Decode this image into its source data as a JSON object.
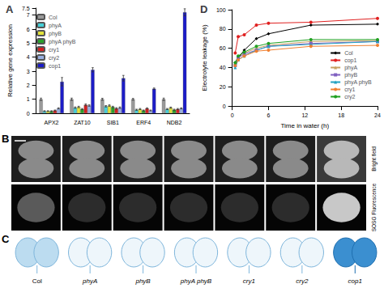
{
  "chart_data": [
    {
      "type": "bar",
      "title": "A",
      "ylabel": "Relative gene expression",
      "categories": [
        "APX2",
        "ZAT10",
        "SIB1",
        "ERF4",
        "NDB2"
      ],
      "series": [
        {
          "name": "Col",
          "color": "#9a9a9a",
          "values": [
            1.0,
            1.0,
            1.0,
            1.0,
            1.0
          ],
          "errors": [
            0.08,
            0.08,
            0.07,
            0.06,
            0.08
          ]
        },
        {
          "name": "phyA",
          "color": "#45d0d8",
          "values": [
            0.15,
            0.4,
            0.5,
            0.25,
            0.3
          ],
          "errors": [
            0.03,
            0.05,
            0.05,
            0.04,
            0.04
          ]
        },
        {
          "name": "phyB",
          "color": "#e2e23a",
          "values": [
            0.15,
            0.45,
            0.55,
            0.3,
            0.4
          ],
          "errors": [
            0.03,
            0.05,
            0.05,
            0.04,
            0.04
          ]
        },
        {
          "name": "phyA phyB",
          "color": "#2aa02a",
          "values": [
            0.15,
            0.3,
            0.45,
            0.2,
            0.25
          ],
          "errors": [
            0.03,
            0.04,
            0.05,
            0.03,
            0.04
          ]
        },
        {
          "name": "cry1",
          "color": "#d42020",
          "values": [
            0.2,
            0.6,
            0.35,
            0.35,
            0.3
          ],
          "errors": [
            0.03,
            0.06,
            0.05,
            0.04,
            0.04
          ]
        },
        {
          "name": "cry2",
          "color": "#9ab0e0",
          "values": [
            0.35,
            0.55,
            0.4,
            0.2,
            0.35
          ],
          "errors": [
            0.04,
            0.05,
            0.05,
            0.03,
            0.04
          ]
        },
        {
          "name": "cop1",
          "color": "#1c1cc8",
          "values": [
            2.25,
            3.1,
            2.5,
            1.75,
            7.2
          ],
          "errors": [
            0.3,
            0.15,
            0.2,
            0.05,
            0.25
          ]
        }
      ],
      "ylim": [
        0,
        7.5
      ],
      "yticks": [
        0,
        1,
        2,
        3,
        4,
        5,
        6,
        7
      ],
      "grid": false,
      "legend": "upper left"
    },
    {
      "type": "line",
      "title": "D",
      "xlabel": "Time in water (h)",
      "ylabel": "Electrolyte leakage (%)",
      "x": [
        0.5,
        1,
        2,
        4,
        6,
        13,
        24
      ],
      "series": [
        {
          "name": "Col",
          "color": "#000000",
          "marker": "diamond",
          "values": [
            45,
            50,
            58,
            70,
            75,
            84,
            85
          ]
        },
        {
          "name": "cop1",
          "color": "#e02020",
          "marker": "circle",
          "values": [
            55,
            72,
            74,
            84,
            86,
            87,
            91
          ]
        },
        {
          "name": "phyA",
          "color": "#c8a060",
          "marker": "triangle",
          "values": [
            44,
            50,
            55,
            60,
            63,
            67,
            68
          ]
        },
        {
          "name": "phyB",
          "color": "#8060c0",
          "marker": "square",
          "values": [
            42,
            50,
            54,
            58,
            62,
            65,
            67
          ]
        },
        {
          "name": "phyA phyB",
          "color": "#20a0c0",
          "marker": "triangle",
          "values": [
            40,
            48,
            52,
            58,
            62,
            64,
            67
          ]
        },
        {
          "name": "cry1",
          "color": "#f08030",
          "marker": "circle",
          "values": [
            42,
            48,
            52,
            57,
            58,
            62,
            63
          ]
        },
        {
          "name": "cry2",
          "color": "#20a020",
          "marker": "circle",
          "values": [
            45,
            52,
            56,
            62,
            65,
            69,
            69
          ]
        }
      ],
      "xlim": [
        0,
        24
      ],
      "xticks": [
        0,
        6,
        12,
        18,
        24
      ],
      "ylim": [
        0,
        100
      ],
      "yticks": [
        0,
        20,
        40,
        60,
        80,
        100
      ],
      "grid": false,
      "legend": "lower right"
    }
  ],
  "panels": [
    {
      "title": "B",
      "row_labels": [
        "Bright field",
        "SOSG Fluorescence"
      ]
    },
    {
      "title": "C",
      "labels": [
        "Col",
        "phyA",
        "phyB",
        "phyA phyB",
        "cry1",
        "cry2",
        "cop1"
      ]
    }
  ]
}
